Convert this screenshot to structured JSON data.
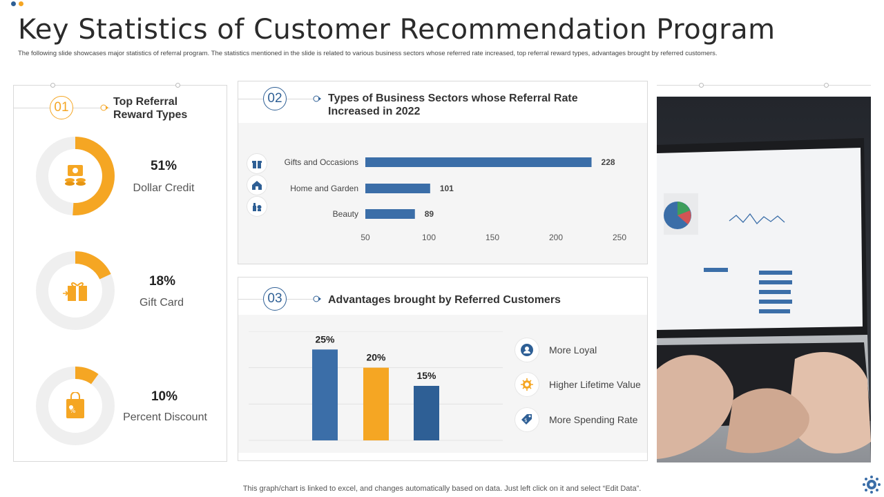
{
  "header": {
    "title": "Key Statistics of Customer Recommendation Program",
    "subtitle": "The following slide showcases major statistics of referral program. The statistics mentioned in the slide is related to various business sectors whose referred rate increased, top referral reward types, advantages brought by referred customers."
  },
  "colors": {
    "orange": "#f5a623",
    "blue": "#3b6ea8",
    "dark_blue": "#2e5f95",
    "track": "#efefef"
  },
  "panel1": {
    "number": "01",
    "heading_line1": "Top Referral",
    "heading_line2": "Reward Types",
    "items": [
      {
        "value": "51%",
        "label": "Dollar Credit",
        "fraction": 0.51,
        "icon": "money-icon"
      },
      {
        "value": "18%",
        "label": "Gift Card",
        "fraction": 0.18,
        "icon": "gift-card-icon"
      },
      {
        "value": "10%",
        "label": "Percent Discount",
        "fraction": 0.1,
        "icon": "discount-bag-icon"
      }
    ]
  },
  "panel2": {
    "number": "02",
    "heading_line1": "Types of Business Sectors  whose Referral Rate",
    "heading_line2": "Increased in 2022",
    "icons": [
      "gift-icon",
      "home-icon",
      "beauty-icon"
    ]
  },
  "panel3": {
    "number": "03",
    "heading": "Advantages brought by Referred Customers",
    "advantages": [
      {
        "label": "More Loyal",
        "icon": "loyal-customer-icon"
      },
      {
        "label": "Higher Lifetime Value",
        "icon": "lifetime-value-icon"
      },
      {
        "label": "More Spending Rate",
        "icon": "spending-tag-icon"
      }
    ]
  },
  "chart_data": [
    {
      "type": "bar",
      "orientation": "horizontal",
      "categories": [
        "Gifts and Occasions",
        "Home and Garden",
        "Beauty"
      ],
      "values": [
        228,
        101,
        89
      ],
      "xlim": [
        50,
        250
      ],
      "xticks": [
        "50",
        "100",
        "150",
        "200",
        "250"
      ],
      "data_labels": [
        "228",
        "101",
        "89"
      ],
      "color": "#3b6ea8",
      "grid": false
    },
    {
      "type": "bar",
      "orientation": "vertical",
      "categories": [
        "More Loyal",
        "Higher Lifetime Value",
        "More Spending Rate"
      ],
      "values": [
        25,
        20,
        15
      ],
      "data_labels": [
        "25%",
        "20%",
        "15%"
      ],
      "colors": [
        "#3b6ea8",
        "#f5a623",
        "#2e5f95"
      ],
      "ylim": [
        0,
        30
      ],
      "grid": true
    }
  ],
  "footer": {
    "note": "This graph/chart is linked to excel,  and changes automatically based on data. Just left click on it and select “Edit Data”."
  }
}
